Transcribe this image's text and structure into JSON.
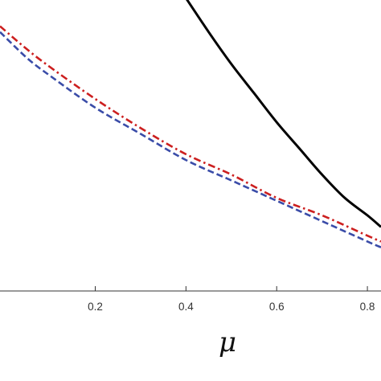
{
  "chart_data": {
    "type": "line",
    "title": "",
    "xlabel": "μ",
    "ylabel": "",
    "xlim": [
      -0.01,
      0.83
    ],
    "ylim": [
      0,
      1
    ],
    "x_ticks": [
      0.2,
      0.4,
      0.6,
      0.8
    ],
    "x_tick_labels": [
      "0.2",
      "0.4",
      "0.6",
      "0.8"
    ],
    "grid": false,
    "legend": "none",
    "series": [
      {
        "style": "solid",
        "color": "#000000",
        "x": [
          0.39,
          0.45,
          0.5,
          0.55,
          0.6,
          0.65,
          0.7,
          0.75,
          0.8,
          0.83
        ],
        "y": [
          1.03,
          0.89,
          0.78,
          0.68,
          0.58,
          0.49,
          0.4,
          0.32,
          0.26,
          0.22
        ]
      },
      {
        "style": "dashdot",
        "color": "#cc1f1f",
        "x": [
          -0.01,
          0.05,
          0.1,
          0.2,
          0.3,
          0.4,
          0.5,
          0.6,
          0.7,
          0.8,
          0.83
        ],
        "y": [
          0.91,
          0.83,
          0.77,
          0.66,
          0.56,
          0.47,
          0.4,
          0.32,
          0.26,
          0.19,
          0.17
        ]
      },
      {
        "style": "dashed",
        "color": "#3a4ca8",
        "x": [
          -0.01,
          0.05,
          0.1,
          0.2,
          0.3,
          0.4,
          0.5,
          0.6,
          0.7,
          0.8,
          0.83
        ],
        "y": [
          0.89,
          0.8,
          0.74,
          0.63,
          0.54,
          0.45,
          0.38,
          0.31,
          0.24,
          0.17,
          0.15
        ]
      }
    ]
  }
}
